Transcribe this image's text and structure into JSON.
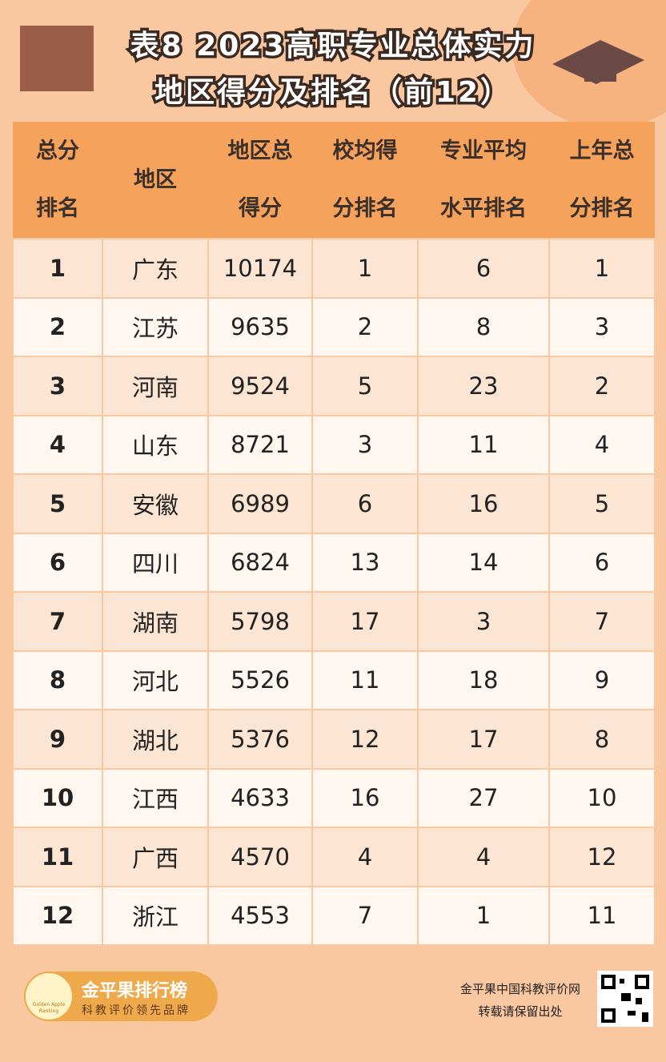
{
  "title": {
    "line1": "表8  2023高职专业总体实力",
    "line2": "地区得分及排名（前12）"
  },
  "table": {
    "headers": [
      [
        "总分",
        "排名"
      ],
      [
        "地区"
      ],
      [
        "地区总",
        "得分"
      ],
      [
        "校均得",
        "分排名"
      ],
      [
        "专业平均",
        "水平排名"
      ],
      [
        "上年总",
        "分排名"
      ]
    ],
    "rows": [
      [
        1,
        "广东",
        10174,
        1,
        6,
        1
      ],
      [
        2,
        "江苏",
        9635,
        2,
        8,
        3
      ],
      [
        3,
        "河南",
        9524,
        5,
        23,
        2
      ],
      [
        4,
        "山东",
        8721,
        3,
        11,
        4
      ],
      [
        5,
        "安徽",
        6989,
        6,
        16,
        5
      ],
      [
        6,
        "四川",
        6824,
        13,
        14,
        6
      ],
      [
        7,
        "湖南",
        5798,
        17,
        3,
        7
      ],
      [
        8,
        "河北",
        5526,
        11,
        18,
        9
      ],
      [
        9,
        "湖北",
        5376,
        12,
        17,
        8
      ],
      [
        10,
        "江西",
        4633,
        16,
        27,
        10
      ],
      [
        11,
        "广西",
        4570,
        4,
        4,
        12
      ],
      [
        12,
        "浙江",
        4553,
        7,
        1,
        11
      ]
    ]
  },
  "footer": {
    "brand": "金平果排行榜",
    "slogan": "科教评价领先品牌",
    "badge": "Golden Apple Ranking",
    "site": "金平果中国科教评价网",
    "notice": "转载请保留出处"
  }
}
